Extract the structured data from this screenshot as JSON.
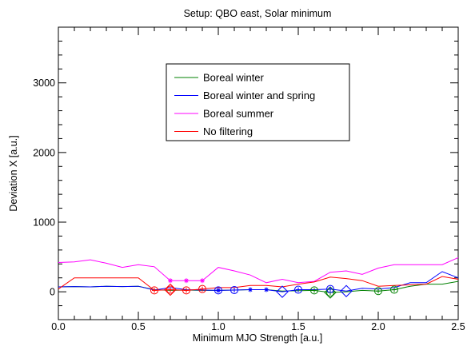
{
  "chart_data": {
    "type": "line",
    "title": "Setup: QBO east, Solar minimum",
    "xlabel": "Minimum MJO Strength [a.u.]",
    "ylabel": "Deviation X [a.u.]",
    "xlim": [
      0,
      2.5
    ],
    "ylim": [
      -400,
      3800
    ],
    "xticks": [
      0.0,
      0.5,
      1.0,
      1.5,
      2.0,
      2.5
    ],
    "xtick_labels": [
      "0.0",
      "0.5",
      "1.0",
      "1.5",
      "2.0",
      "2.5"
    ],
    "yticks": [
      0,
      1000,
      2000,
      3000
    ],
    "ytick_labels": [
      "0",
      "1000",
      "2000",
      "3000"
    ],
    "grid": false,
    "legend_position": "top-center",
    "series": [
      {
        "name": "Boreal winter",
        "color": "#008000",
        "x": [
          0.0,
          0.1,
          0.2,
          0.3,
          0.4,
          0.5,
          0.6,
          0.7,
          0.8,
          0.9,
          1.0,
          1.1,
          1.2,
          1.3,
          1.4,
          1.5,
          1.6,
          1.7,
          1.8,
          1.9,
          2.0,
          2.1,
          2.2,
          2.3,
          2.4,
          2.5
        ],
        "y": [
          70,
          75,
          70,
          80,
          75,
          80,
          30,
          20,
          25,
          20,
          20,
          25,
          30,
          30,
          10,
          15,
          20,
          -10,
          0,
          20,
          10,
          30,
          80,
          110,
          110,
          150
        ]
      },
      {
        "name": "Boreal winter and spring",
        "color": "#0000ff",
        "x": [
          0.0,
          0.1,
          0.2,
          0.3,
          0.4,
          0.5,
          0.6,
          0.7,
          0.8,
          0.9,
          1.0,
          1.1,
          1.2,
          1.3,
          1.4,
          1.5,
          1.6,
          1.7,
          1.8,
          1.9,
          2.0,
          2.1,
          2.2,
          2.3,
          2.4,
          2.5
        ],
        "y": [
          70,
          75,
          70,
          80,
          75,
          80,
          25,
          60,
          30,
          25,
          20,
          25,
          30,
          30,
          0,
          30,
          30,
          40,
          10,
          50,
          40,
          60,
          130,
          130,
          290,
          200
        ]
      },
      {
        "name": "Boreal summer",
        "color": "#ff00ff",
        "x": [
          0.0,
          0.1,
          0.2,
          0.3,
          0.4,
          0.5,
          0.6,
          0.7,
          0.8,
          0.9,
          1.0,
          1.1,
          1.2,
          1.3,
          1.4,
          1.5,
          1.6,
          1.7,
          1.8,
          1.9,
          2.0,
          2.1,
          2.2,
          2.3,
          2.4,
          2.5
        ],
        "y": [
          420,
          430,
          460,
          410,
          350,
          390,
          360,
          160,
          160,
          160,
          350,
          300,
          240,
          130,
          180,
          130,
          150,
          280,
          300,
          250,
          340,
          390,
          390,
          390,
          390,
          490
        ]
      },
      {
        "name": "No filtering",
        "color": "#ff0000",
        "x": [
          0.0,
          0.1,
          0.2,
          0.3,
          0.4,
          0.5,
          0.6,
          0.7,
          0.8,
          0.9,
          1.0,
          1.1,
          1.2,
          1.3,
          1.4,
          1.5,
          1.6,
          1.7,
          1.8,
          1.9,
          2.0,
          2.1,
          2.2,
          2.3,
          2.4,
          2.5
        ],
        "y": [
          40,
          200,
          200,
          200,
          200,
          200,
          20,
          30,
          20,
          40,
          60,
          60,
          90,
          90,
          70,
          110,
          140,
          210,
          190,
          160,
          80,
          90,
          100,
          110,
          220,
          180
        ]
      }
    ],
    "markers": [
      {
        "series": 0,
        "symbol": "circle-plus",
        "x": [
          1.6,
          1.7,
          2.0,
          2.1
        ]
      },
      {
        "series": 0,
        "symbol": "diamond",
        "x": [
          1.7
        ]
      },
      {
        "series": 1,
        "symbol": "circle-plus",
        "x": [
          1.0,
          1.1,
          1.5,
          1.7
        ]
      },
      {
        "series": 1,
        "symbol": "diamond",
        "x": [
          1.4,
          1.8
        ]
      },
      {
        "series": 1,
        "symbol": "star",
        "x": [
          1.0,
          1.2,
          1.3
        ]
      },
      {
        "series": 2,
        "symbol": "star",
        "x": [
          0.7,
          0.8,
          0.9
        ]
      },
      {
        "series": 3,
        "symbol": "circle-plus",
        "x": [
          0.6,
          0.7,
          0.8,
          0.9
        ]
      },
      {
        "series": 3,
        "symbol": "diamond",
        "x": [
          0.7
        ]
      }
    ]
  }
}
